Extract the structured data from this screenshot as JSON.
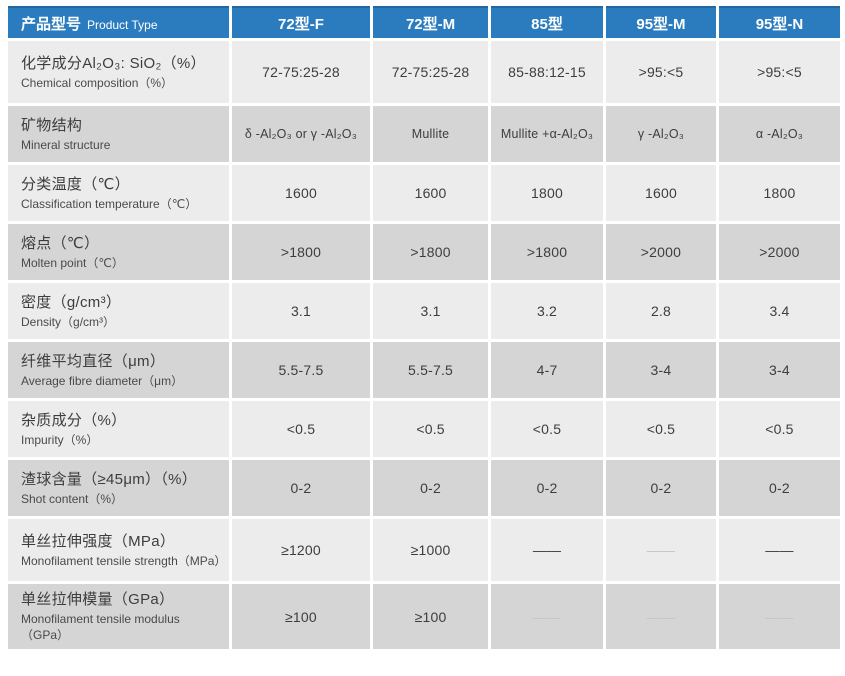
{
  "colors": {
    "page_bg": "#ffffff",
    "header_blue": "#2b7cbf",
    "header_blue_dark": "#2268a4",
    "header_text": "#ffffff",
    "row_light": "#ececec",
    "row_dark": "#d5d5d5",
    "text_dark": "#3d3d3d",
    "text_mid": "#4a4a4a",
    "muted_dash": "#c6c6c6"
  },
  "table": {
    "header": {
      "label_zh": "产品型号",
      "label_en": "Product Type",
      "columns": [
        "72型-F",
        "72型-M",
        "85型",
        "95型-M",
        "95型-N"
      ]
    },
    "rows": [
      {
        "zh": "化学成分Al₂O₃: SiO₂（%）",
        "en": "Chemical composition（%）",
        "values": [
          "72-75:25-28",
          "72-75:25-28",
          "85-88:12-15",
          ">95:<5",
          ">95:<5"
        ]
      },
      {
        "zh": "矿物结构",
        "en": "Mineral structure",
        "values": [
          "δ -Al₂O₃ or γ -Al₂O₃",
          "Mullite",
          "Mullite +α-Al₂O₃",
          "γ -Al₂O₃",
          "α -Al₂O₃"
        ]
      },
      {
        "zh": "分类温度（℃）",
        "en": "Classification temperature（℃）",
        "values": [
          "1600",
          "1600",
          "1800",
          "1600",
          "1800"
        ]
      },
      {
        "zh": "熔点（℃）",
        "en": "Molten point（℃）",
        "values": [
          ">1800",
          ">1800",
          ">1800",
          ">2000",
          ">2000"
        ]
      },
      {
        "zh": "密度（g/cm³）",
        "en": "Density（g/cm³）",
        "values": [
          "3.1",
          "3.1",
          "3.2",
          "2.8",
          "3.4"
        ]
      },
      {
        "zh": "纤维平均直径（μm）",
        "en": "Average fibre diameter（μm）",
        "values": [
          "5.5-7.5",
          "5.5-7.5",
          "4-7",
          "3-4",
          "3-4"
        ]
      },
      {
        "zh": "杂质成分（%）",
        "en": "Impurity（%）",
        "values": [
          "<0.5",
          "<0.5",
          "<0.5",
          "<0.5",
          "<0.5"
        ]
      },
      {
        "zh": "渣球含量（≥45μm）（%）",
        "en": "Shot content（%）",
        "values": [
          "0-2",
          "0-2",
          "0-2",
          "0-2",
          "0-2"
        ]
      },
      {
        "zh": "单丝拉伸强度（MPa）",
        "en": "Monofilament tensile strength（MPa）",
        "values": [
          "≥1200",
          "≥1000",
          "——",
          "——",
          "——"
        ],
        "muted": [
          false,
          false,
          false,
          true,
          false
        ]
      },
      {
        "zh": "单丝拉伸模量（GPa）",
        "en": "Monofilament tensile modulus（GPa）",
        "values": [
          "≥100",
          "≥100",
          "——",
          "——",
          "——"
        ],
        "muted": [
          false,
          false,
          true,
          true,
          true
        ]
      }
    ]
  }
}
